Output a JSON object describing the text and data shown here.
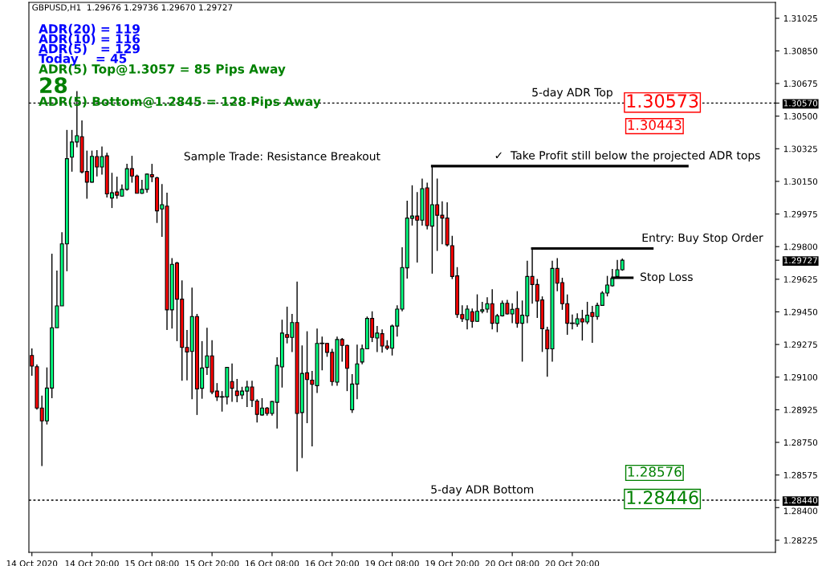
{
  "chart_data": {
    "type": "candlestick",
    "title": "GBPUSD,H1  1.29676 1.29736 1.29670 1.29727",
    "categories": [
      "14 Oct 2020",
      null,
      null,
      null,
      null,
      null,
      null,
      null,
      null,
      null,
      null,
      null,
      "14 Oct 20:00",
      null,
      null,
      null,
      null,
      null,
      null,
      null,
      null,
      null,
      null,
      null,
      "15 Oct 08:00",
      null,
      null,
      null,
      null,
      null,
      null,
      null,
      null,
      null,
      null,
      null,
      "15 Oct 20:00",
      null,
      null,
      null,
      null,
      null,
      null,
      null,
      null,
      null,
      null,
      null,
      "16 Oct 08:00",
      null,
      null,
      null,
      null,
      null,
      null,
      null,
      null,
      null,
      null,
      null,
      "16 Oct 20:00",
      null,
      null,
      null,
      null,
      null,
      null,
      null,
      null,
      null,
      null,
      null,
      "19 Oct 08:00",
      null,
      null,
      null,
      null,
      null,
      null,
      null,
      null,
      null,
      null,
      null,
      "19 Oct 20:00",
      null,
      null,
      null,
      null,
      null,
      null,
      null,
      null,
      null,
      null,
      null,
      "20 Oct 08:00",
      null,
      null,
      null,
      null,
      null,
      null,
      null,
      null,
      null,
      null,
      null,
      "20 Oct 20:00",
      null,
      null,
      null,
      null,
      null,
      null,
      null,
      null,
      null,
      null,
      null,
      null,
      null,
      null,
      null,
      null,
      null,
      null,
      null,
      null,
      null,
      null,
      null,
      null,
      null,
      null,
      null,
      null,
      null,
      null,
      null,
      null,
      null,
      null,
      null,
      null,
      null,
      null,
      null,
      null
    ],
    "ohlc": [
      [
        1.29216,
        1.29254,
        1.29107,
        1.29159
      ],
      [
        1.29156,
        1.29168,
        1.28926,
        1.28934
      ],
      [
        1.28934,
        1.29001,
        1.28623,
        1.28865
      ],
      [
        1.28865,
        1.29152,
        1.28846,
        1.29041
      ],
      [
        1.29041,
        1.29762,
        1.28987,
        1.29365
      ],
      [
        1.29365,
        1.29672,
        1.29365,
        1.29482
      ],
      [
        1.29482,
        1.29877,
        1.29482,
        1.29815
      ],
      [
        1.29815,
        1.30426,
        1.29668,
        1.30272
      ],
      [
        1.3028,
        1.30426,
        1.30202,
        1.30361
      ],
      [
        1.30361,
        1.30634,
        1.30333,
        1.30395
      ],
      [
        1.3039,
        1.30477,
        1.30193,
        1.30201
      ],
      [
        1.30203,
        1.30315,
        1.30057,
        1.30146
      ],
      [
        1.30146,
        1.30315,
        1.30143,
        1.30284
      ],
      [
        1.30283,
        1.30318,
        1.30177,
        1.30227
      ],
      [
        1.30227,
        1.30337,
        1.30186,
        1.30283
      ],
      [
        1.30287,
        1.30304,
        1.30064,
        1.30083
      ],
      [
        1.30061,
        1.30196,
        1.30007,
        1.30089
      ],
      [
        1.30093,
        1.30176,
        1.30057,
        1.30076
      ],
      [
        1.30071,
        1.30133,
        1.30068,
        1.30107
      ],
      [
        1.30107,
        1.30244,
        1.301,
        1.30218
      ],
      [
        1.30218,
        1.30287,
        1.30143,
        1.30179
      ],
      [
        1.30179,
        1.30186,
        1.30086,
        1.30086
      ],
      [
        1.30086,
        1.30158,
        1.30083,
        1.30107
      ],
      [
        1.30107,
        1.30193,
        1.30089,
        1.30189
      ],
      [
        1.30186,
        1.30244,
        1.30146,
        1.30175
      ],
      [
        1.30169,
        1.30175,
        1.29927,
        1.29992
      ],
      [
        1.30002,
        1.30136,
        1.29853,
        1.30025
      ],
      [
        1.30017,
        1.30089,
        1.29353,
        1.29461
      ],
      [
        1.29461,
        1.29738,
        1.2936,
        1.29705
      ],
      [
        1.29712,
        1.29719,
        1.29293,
        1.29518
      ],
      [
        1.29518,
        1.29619,
        1.2908,
        1.29259
      ],
      [
        1.29259,
        1.29353,
        1.29083,
        1.29235
      ],
      [
        1.29238,
        1.2958,
        1.28982,
        1.29425
      ],
      [
        1.29425,
        1.29439,
        1.28897,
        1.29037
      ],
      [
        1.2904,
        1.29293,
        1.28984,
        1.29149
      ],
      [
        1.29152,
        1.29365,
        1.29112,
        1.29214
      ],
      [
        1.29214,
        1.29298,
        1.29008,
        1.2902
      ],
      [
        1.29025,
        1.29068,
        1.28972,
        1.28994
      ],
      [
        1.28994,
        1.29025,
        1.28915,
        1.28994
      ],
      [
        1.28994,
        1.29152,
        1.28953,
        1.29152
      ],
      [
        1.29076,
        1.29173,
        1.28968,
        1.2904
      ],
      [
        1.29025,
        1.2909,
        1.28965,
        1.29001
      ],
      [
        1.29004,
        1.29048,
        1.28982,
        1.29025
      ],
      [
        1.29025,
        1.2908,
        1.28939,
        1.29047
      ],
      [
        1.29047,
        1.2908,
        1.28939,
        1.28975
      ],
      [
        1.28972,
        1.28982,
        1.28857,
        1.289
      ],
      [
        1.28897,
        1.28987,
        1.28893,
        1.28934
      ],
      [
        1.28934,
        1.28939,
        1.28893,
        1.28905
      ],
      [
        1.28905,
        1.28972,
        1.28893,
        1.28969
      ],
      [
        1.28965,
        1.29206,
        1.28824,
        1.29163
      ],
      [
        1.29155,
        1.29408,
        1.29044,
        1.29336
      ],
      [
        1.29328,
        1.29478,
        1.29281,
        1.29313
      ],
      [
        1.29313,
        1.29439,
        1.29235,
        1.29393
      ],
      [
        1.29393,
        1.29612,
        1.28594,
        1.28905
      ],
      [
        1.2891,
        1.2927,
        1.28666,
        1.2912
      ],
      [
        1.29123,
        1.29346,
        1.28853,
        1.29087
      ],
      [
        1.29084,
        1.29133,
        1.28728,
        1.29061
      ],
      [
        1.29054,
        1.2936,
        1.29015,
        1.29281
      ],
      [
        1.29281,
        1.29317,
        1.29137,
        1.29281
      ],
      [
        1.29281,
        1.29284,
        1.29209,
        1.29233
      ],
      [
        1.29233,
        1.29252,
        1.29054,
        1.29076
      ],
      [
        1.29073,
        1.29317,
        1.29054,
        1.29302
      ],
      [
        1.29302,
        1.2931,
        1.29183,
        1.2927
      ],
      [
        1.2927,
        1.29274,
        1.29025,
        1.29147
      ],
      [
        1.28925,
        1.29116,
        1.28908,
        1.29063
      ],
      [
        1.29063,
        1.29274,
        1.28982,
        1.29171
      ],
      [
        1.29181,
        1.29274,
        1.29169,
        1.29252
      ],
      [
        1.29252,
        1.29425,
        1.2925,
        1.29415
      ],
      [
        1.29415,
        1.29453,
        1.29288,
        1.29313
      ],
      [
        1.2931,
        1.29374,
        1.29235,
        1.29336
      ],
      [
        1.29333,
        1.29356,
        1.29231,
        1.29267
      ],
      [
        1.29267,
        1.29298,
        1.29245,
        1.29255
      ],
      [
        1.29255,
        1.29382,
        1.29216,
        1.29374
      ],
      [
        1.29374,
        1.29485,
        1.29317,
        1.29465
      ],
      [
        1.29465,
        1.29796,
        1.29453,
        1.29688
      ],
      [
        1.29686,
        1.30046,
        1.29629,
        1.29953
      ],
      [
        1.29952,
        1.30129,
        1.29913,
        1.29964
      ],
      [
        1.29964,
        1.30093,
        1.29715,
        1.29942
      ],
      [
        1.29942,
        1.30165,
        1.29913,
        1.30111
      ],
      [
        1.30115,
        1.30143,
        1.29892,
        1.29913
      ],
      [
        1.2991,
        1.30229,
        1.29655,
        1.30025
      ],
      [
        1.30025,
        1.30165,
        1.29777,
        1.29968
      ],
      [
        1.29968,
        1.30043,
        1.29813,
        1.29953
      ],
      [
        1.29953,
        1.30038,
        1.29801,
        1.2981
      ],
      [
        1.29805,
        1.29858,
        1.29626,
        1.2964
      ],
      [
        1.29643,
        1.2969,
        1.29418,
        1.29436
      ],
      [
        1.29436,
        1.29485,
        1.29396,
        1.29413
      ],
      [
        1.29408,
        1.29485,
        1.29356,
        1.29465
      ],
      [
        1.29451,
        1.29468,
        1.29365,
        1.29399
      ],
      [
        1.29399,
        1.29544,
        1.29396,
        1.29453
      ],
      [
        1.29453,
        1.29504,
        1.29442,
        1.29461
      ],
      [
        1.29465,
        1.29528,
        1.29446,
        1.29494
      ],
      [
        1.29494,
        1.29571,
        1.29356,
        1.29389
      ],
      [
        1.29389,
        1.29439,
        1.29341,
        1.29429
      ],
      [
        1.29429,
        1.29511,
        1.29425,
        1.29496
      ],
      [
        1.29496,
        1.29514,
        1.29436,
        1.29439
      ],
      [
        1.29439,
        1.29496,
        1.29389,
        1.29464
      ],
      [
        1.29468,
        1.29561,
        1.29365,
        1.29389
      ],
      [
        1.29389,
        1.29511,
        1.29183,
        1.29432
      ],
      [
        1.29428,
        1.29724,
        1.29389,
        1.2964
      ],
      [
        1.2964,
        1.29787,
        1.29494,
        1.29597
      ],
      [
        1.29597,
        1.29626,
        1.29418,
        1.29508
      ],
      [
        1.29514,
        1.29533,
        1.29235,
        1.2936
      ],
      [
        1.29353,
        1.2937,
        1.29102,
        1.29252
      ],
      [
        1.29252,
        1.29724,
        1.29183,
        1.29683
      ],
      [
        1.29683,
        1.29738,
        1.29561,
        1.29604
      ],
      [
        1.29607,
        1.29633,
        1.29461,
        1.29494
      ],
      [
        1.29494,
        1.29543,
        1.29327,
        1.29389
      ],
      [
        1.29389,
        1.29436,
        1.29356,
        1.29389
      ],
      [
        1.29384,
        1.29442,
        1.2937,
        1.29413
      ],
      [
        1.29413,
        1.29461,
        1.29296,
        1.29396
      ],
      [
        1.29396,
        1.29504,
        1.29384,
        1.29432
      ],
      [
        1.29446,
        1.29482,
        1.29284,
        1.29425
      ],
      [
        1.29425,
        1.29499,
        1.29408,
        1.29485
      ],
      [
        1.29485,
        1.29561,
        1.29482,
        1.29551
      ],
      [
        1.29551,
        1.29643,
        1.29533,
        1.29594
      ],
      [
        1.2959,
        1.2968,
        1.29586,
        1.29629
      ],
      [
        1.2964,
        1.29729,
        1.29637,
        1.29676
      ],
      [
        1.29676,
        1.29736,
        1.2967,
        1.29727
      ],
      null,
      null,
      null,
      null,
      null,
      null,
      null,
      null,
      null,
      null,
      null,
      null,
      null,
      null,
      null,
      null,
      null,
      null,
      null,
      null,
      null,
      null,
      null,
      null,
      null,
      null,
      null,
      null,
      null,
      null
    ],
    "colors": [
      "#ff0000",
      "#ff0000",
      "#ff0000",
      "#00ff80",
      "#00ff80",
      "#00ff80",
      "#00ff80",
      "#00ff80",
      "#00ff80",
      "#00ff80",
      "#ff0000",
      "#ff0000",
      "#00ff80",
      "#ff0000",
      "#00ff80",
      "#ff0000",
      "#00ff80",
      "#ff0000",
      "#00ff80",
      "#00ff80",
      "#ff0000",
      "#ff0000",
      "#00ff80",
      "#00ff80",
      "#ff0000",
      "#ff0000",
      "#00ff80",
      "#ff0000",
      "#00ff80",
      "#ff0000",
      "#ff0000",
      "#ff0000",
      "#00ff80",
      "#ff0000",
      "#00ff80",
      "#00ff80",
      "#ff0000",
      "#ff0000",
      "#000000",
      "#00ff80",
      "#ff0000",
      "#ff0000",
      "#00ff80",
      "#00ff80",
      "#ff0000",
      "#ff0000",
      "#00ff80",
      "#ff0000",
      "#00ff80",
      "#00ff80",
      "#00ff80",
      "#ff0000",
      "#00ff80",
      "#ff0000",
      "#00ff80",
      "#ff0000",
      "#ff0000",
      "#00ff80",
      "#000000",
      "#ff0000",
      "#ff0000",
      "#00ff80",
      "#ff0000",
      "#ff0000",
      "#00ff80",
      "#00ff80",
      "#00ff80",
      "#00ff80",
      "#ff0000",
      "#00ff80",
      "#ff0000",
      "#ff0000",
      "#00ff80",
      "#00ff80",
      "#00ff80",
      "#00ff80",
      "#00ff80",
      "#ff0000",
      "#00ff80",
      "#ff0000",
      "#00ff80",
      "#ff0000",
      "#ff0000",
      "#ff0000",
      "#ff0000",
      "#ff0000",
      "#ff0000",
      "#00ff80",
      "#ff0000",
      "#00ff80",
      "#00ff80",
      "#00ff80",
      "#ff0000",
      "#00ff80",
      "#00ff80",
      "#ff0000",
      "#00ff80",
      "#ff0000",
      "#00ff80",
      "#00ff80",
      "#ff0000",
      "#ff0000",
      "#ff0000",
      "#ff0000",
      "#00ff80",
      "#ff0000",
      "#ff0000",
      "#ff0000",
      "#000000",
      "#00ff80",
      "#ff0000",
      "#00ff80",
      "#ff0000",
      "#00ff80",
      "#00ff80",
      "#00ff80",
      "#00ff80",
      "#00ff80",
      "#00ff80",
      null,
      null,
      null,
      null,
      null,
      null,
      null,
      null,
      null,
      null,
      null,
      null,
      null,
      null,
      null,
      null,
      null,
      null,
      null,
      null,
      null,
      null,
      null,
      null,
      null,
      null,
      null,
      null,
      null,
      null
    ],
    "ylim": [
      1.2816,
      1.3111
    ],
    "yticks": [
      {
        "value": 1.31025,
        "label": "1.31025"
      },
      {
        "value": 1.3085,
        "label": "1.30850"
      },
      {
        "value": 1.30675,
        "label": "1.30675"
      },
      {
        "value": 1.3057,
        "label": "1.30570"
      },
      {
        "value": 1.305,
        "label": "1.30500"
      },
      {
        "value": 1.30325,
        "label": "1.30325"
      },
      {
        "value": 1.3015,
        "label": "1.30150"
      },
      {
        "value": 1.29975,
        "label": "1.29975"
      },
      {
        "value": 1.298,
        "label": "1.29800"
      },
      {
        "value": 1.29727,
        "label": "1.29727"
      },
      {
        "value": 1.29625,
        "label": "1.29625"
      },
      {
        "value": 1.2945,
        "label": "1.29450"
      },
      {
        "value": 1.29275,
        "label": "1.29275"
      },
      {
        "value": 1.291,
        "label": "1.29100"
      },
      {
        "value": 1.28925,
        "label": "1.28925"
      },
      {
        "value": 1.2875,
        "label": "1.28750"
      },
      {
        "value": 1.28575,
        "label": "1.28575"
      },
      {
        "value": 1.2844,
        "label": "1.28440"
      },
      {
        "value": 1.284,
        "label": "1.28400"
      },
      {
        "value": 1.28225,
        "label": "1.28225"
      }
    ],
    "ref_lines": [
      {
        "axis": "y",
        "value": 1.3057,
        "label": "5-day ADR Top",
        "line_style": "dotted",
        "color": "#000000"
      },
      {
        "axis": "y",
        "value": 1.2844,
        "label": "5-day ADR Bottom",
        "line_style": "dotted",
        "color": "#000000"
      },
      {
        "axis": "y",
        "value": 1.30232,
        "label": "✓  Take Profit still below the projected ADR tops",
        "line_style": "solid",
        "color": "#000000"
      },
      {
        "axis": "y",
        "value": 1.2979,
        "label": "Entry: Buy Stop Order",
        "line_style": "solid",
        "color": "#000000"
      },
      {
        "axis": "y",
        "value": 1.29633,
        "label": "Stop Loss",
        "line_style": "solid",
        "color": "#000000"
      }
    ],
    "annotations": [
      "ADR(20) = 119",
      "ADR(10) = 116",
      "ADR(5)   = 129",
      "Today    = 45",
      "ADR(5) Top@1.3057 = 85 Pips Away",
      "28",
      "ADR(5) Bottom@1.2845 = 128 Pips Away",
      "Sample Trade: Resistance Breakout",
      {
        "text": "1.30573",
        "y": 1.30573
      },
      "1.30443",
      "1.28576",
      {
        "text": "1.28446",
        "y": 1.28446
      }
    ],
    "grid": false,
    "legend": false
  }
}
